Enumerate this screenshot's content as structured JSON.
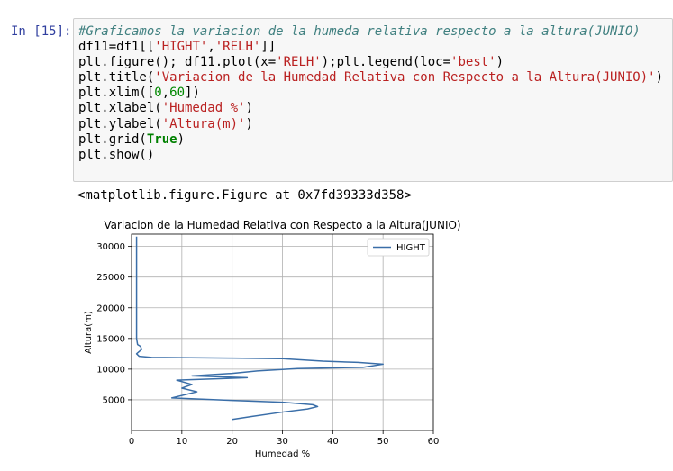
{
  "cell": {
    "prompt": "In [15]:",
    "code_lines": [
      [
        {
          "t": "#Graficamos la variacion de la humeda relativa respecto a la altura(JUNIO)",
          "c": "cm"
        }
      ],
      [
        {
          "t": "df11=df1[[",
          "c": ""
        },
        {
          "t": "'HIGHT'",
          "c": "st"
        },
        {
          "t": ",",
          "c": ""
        },
        {
          "t": "'RELH'",
          "c": "st"
        },
        {
          "t": "]]",
          "c": ""
        }
      ],
      [
        {
          "t": "plt.figure(); df11.plot(x=",
          "c": ""
        },
        {
          "t": "'RELH'",
          "c": "st"
        },
        {
          "t": ");plt.legend(loc=",
          "c": ""
        },
        {
          "t": "'best'",
          "c": "st"
        },
        {
          "t": ")",
          "c": ""
        }
      ],
      [
        {
          "t": "plt.title(",
          "c": ""
        },
        {
          "t": "'Variacion de la Humedad Relativa con Respecto a la Altura(JUNIO)'",
          "c": "st"
        },
        {
          "t": ")",
          "c": ""
        }
      ],
      [
        {
          "t": "plt.xlim([",
          "c": ""
        },
        {
          "t": "0",
          "c": "nu"
        },
        {
          "t": ",",
          "c": ""
        },
        {
          "t": "60",
          "c": "nu"
        },
        {
          "t": "])",
          "c": ""
        }
      ],
      [
        {
          "t": "plt.xlabel(",
          "c": ""
        },
        {
          "t": "'Humedad %'",
          "c": "st"
        },
        {
          "t": ")",
          "c": ""
        }
      ],
      [
        {
          "t": "plt.ylabel(",
          "c": ""
        },
        {
          "t": "'Altura(m)'",
          "c": "st"
        },
        {
          "t": ")",
          "c": ""
        }
      ],
      [
        {
          "t": "plt.grid(",
          "c": ""
        },
        {
          "t": "True",
          "c": "kw"
        },
        {
          "t": ")",
          "c": ""
        }
      ],
      [
        {
          "t": "plt.show()",
          "c": ""
        }
      ]
    ],
    "output_text": "<matplotlib.figure.Figure at 0x7fd39333d358>"
  },
  "colors": {
    "line": "#3a6ea8",
    "grid": "#b0b0b0"
  },
  "chart_data": {
    "type": "line",
    "title": "Variacion de la Humedad Relativa con Respecto a la Altura(JUNIO)",
    "xlabel": "Humedad %",
    "ylabel": "Altura(m)",
    "xlim": [
      0,
      60
    ],
    "ylim": [
      0,
      32000
    ],
    "xticks": [
      0,
      10,
      20,
      30,
      40,
      50,
      60
    ],
    "yticks": [
      5000,
      10000,
      15000,
      20000,
      25000,
      30000
    ],
    "grid": true,
    "legend": "top-right",
    "series": [
      {
        "name": "HIGHT",
        "x": [
          20,
          24,
          30,
          35,
          37,
          36,
          30,
          20,
          8,
          13,
          10,
          12,
          9,
          23,
          12,
          20,
          25,
          33,
          46,
          50,
          45,
          38,
          30,
          20,
          4,
          1.5,
          1,
          2,
          1.8,
          1.2,
          1,
          1,
          1,
          1,
          1,
          1
        ],
        "y": [
          1800,
          2300,
          3000,
          3500,
          3900,
          4200,
          4600,
          4900,
          5300,
          6300,
          6900,
          7500,
          8200,
          8600,
          8900,
          9300,
          9700,
          10100,
          10300,
          10800,
          11100,
          11300,
          11700,
          11800,
          11900,
          12100,
          12500,
          13200,
          13700,
          14000,
          15000,
          18000,
          22000,
          26000,
          30000,
          31600
        ]
      }
    ]
  }
}
